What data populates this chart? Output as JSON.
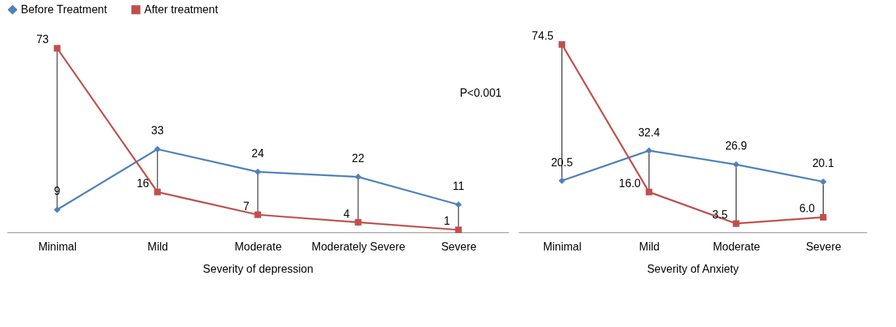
{
  "chart_data": [
    {
      "type": "line",
      "xlabel": "Severity of depression",
      "categories": [
        "Minimal",
        "Mild",
        "Moderate",
        "Moderately Severe",
        "Severe"
      ],
      "tick_labels": "x",
      "legend": "top",
      "data_labels": true,
      "annotations": [
        "P<0.001"
      ],
      "series": [
        {
          "name": "Before Treatment",
          "color": "#4f81bd",
          "marker": "diamond",
          "values": [
            9,
            33,
            24,
            22,
            11
          ]
        },
        {
          "name": "After treatment",
          "color": "#c0504d",
          "marker": "square",
          "values": [
            73,
            16,
            7,
            4,
            1
          ]
        }
      ]
    },
    {
      "type": "line",
      "xlabel": "Severity of Anxiety",
      "categories": [
        "Minimal",
        "Mild",
        "Moderate",
        "Severe"
      ],
      "tick_labels": "x",
      "series": [
        {
          "name": "Before Treatment",
          "color": "#4f81bd",
          "marker": "diamond",
          "values": [
            20.5,
            32.4,
            26.9,
            20.1
          ],
          "value_labels": [
            "20.5",
            "32.4",
            "26.9",
            "20.1"
          ]
        },
        {
          "name": "After treatment",
          "color": "#c0504d",
          "marker": "square",
          "values": [
            74.5,
            16.0,
            3.5,
            6.0
          ],
          "value_labels": [
            "74.5",
            "16.0",
            "3.5",
            "6.0"
          ]
        }
      ]
    }
  ]
}
